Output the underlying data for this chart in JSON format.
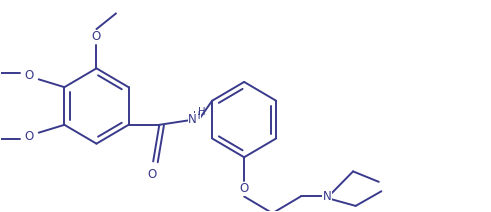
{
  "bg_color": "#ffffff",
  "line_color": "#3a3a8c",
  "line_width": 1.4,
  "font_size": 8.5,
  "figsize": [
    4.91,
    2.12
  ],
  "dpi": 100,
  "xlim": [
    0,
    9.5
  ],
  "ylim": [
    0,
    4.0
  ]
}
